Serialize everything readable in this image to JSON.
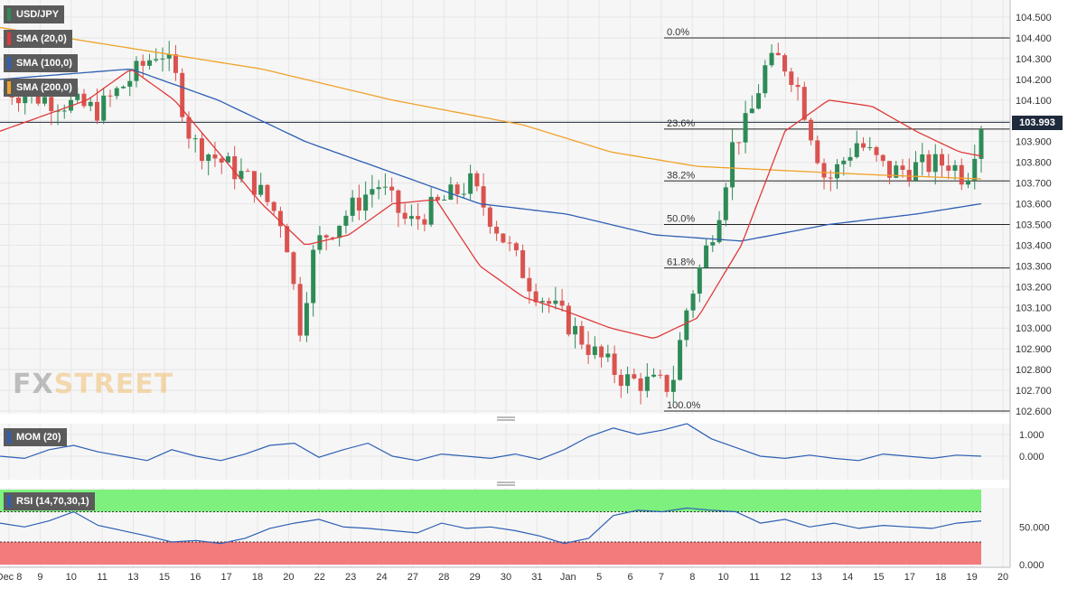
{
  "instrument": "USD/JPY",
  "indicators": {
    "sma20": {
      "label": "SMA (20,0)",
      "color": "#e03a3a"
    },
    "sma100": {
      "label": "SMA (100,0)",
      "color": "#2e5fb3"
    },
    "sma200": {
      "label": "SMA (200,0)",
      "color": "#f0a22a"
    }
  },
  "watermark": {
    "fx": "FX",
    "street": "STREET"
  },
  "last_price": "103.993",
  "chart_data": [
    {
      "type": "candlestick",
      "title": "USD/JPY",
      "ylim": [
        102.6,
        104.55
      ],
      "y_ticks": [
        "104.500",
        "104.400",
        "104.300",
        "104.200",
        "104.100",
        "104.000",
        "103.900",
        "103.800",
        "103.700",
        "103.600",
        "103.500",
        "103.400",
        "103.300",
        "103.200",
        "103.100",
        "103.000",
        "102.900",
        "102.800",
        "102.700",
        "102.600"
      ],
      "x_ticks": [
        "Dec 8",
        "9",
        "10",
        "11",
        "13",
        "15",
        "16",
        "17",
        "18",
        "20",
        "22",
        "23",
        "24",
        "27",
        "28",
        "29",
        "30",
        "31",
        "Jan",
        "5",
        "6",
        "7",
        "8",
        "10",
        "11",
        "12",
        "13",
        "14",
        "15",
        "17",
        "18",
        "19",
        "20"
      ],
      "fibonacci": [
        {
          "label": "0.0%",
          "value": 104.4
        },
        {
          "label": "23.6%",
          "value": 103.96
        },
        {
          "label": "38.2%",
          "value": 103.71
        },
        {
          "label": "50.0%",
          "value": 103.5
        },
        {
          "label": "61.8%",
          "value": 103.29
        },
        {
          "label": "100.0%",
          "value": 102.6
        }
      ],
      "current_price": 103.993,
      "close_path": [
        [
          0,
          104.15
        ],
        [
          6,
          104.05
        ],
        [
          10,
          104.35
        ],
        [
          11,
          104.2
        ],
        [
          12,
          103.9
        ],
        [
          16,
          103.7
        ],
        [
          18,
          103.5
        ],
        [
          19,
          103.0
        ],
        [
          20,
          103.4
        ],
        [
          24,
          103.7
        ],
        [
          26,
          103.5
        ],
        [
          28,
          103.6
        ],
        [
          30,
          103.7
        ],
        [
          32,
          103.45
        ],
        [
          34,
          103.2
        ],
        [
          36,
          103.05
        ],
        [
          38,
          102.88
        ],
        [
          40,
          102.75
        ],
        [
          43,
          102.72
        ],
        [
          44,
          103.1
        ],
        [
          46,
          103.55
        ],
        [
          47,
          103.9
        ],
        [
          48,
          104.0
        ],
        [
          49,
          104.25
        ],
        [
          50,
          104.3
        ],
        [
          51,
          104.2
        ],
        [
          52,
          103.95
        ],
        [
          53,
          103.7
        ],
        [
          55,
          103.9
        ],
        [
          57,
          103.75
        ],
        [
          59,
          103.78
        ],
        [
          61,
          103.8
        ],
        [
          62,
          103.72
        ],
        [
          63,
          103.99
        ]
      ],
      "sma20_path": [
        [
          0,
          103.95
        ],
        [
          4,
          104.1
        ],
        [
          6,
          104.25
        ],
        [
          8,
          104.1
        ],
        [
          10,
          103.85
        ],
        [
          12,
          103.6
        ],
        [
          14,
          103.4
        ],
        [
          16,
          103.45
        ],
        [
          18,
          103.6
        ],
        [
          20,
          103.62
        ],
        [
          22,
          103.3
        ],
        [
          24,
          103.15
        ],
        [
          26,
          103.08
        ],
        [
          28,
          103.0
        ],
        [
          30,
          102.95
        ],
        [
          32,
          103.05
        ],
        [
          34,
          103.4
        ],
        [
          36,
          103.95
        ],
        [
          38,
          104.1
        ],
        [
          40,
          104.07
        ],
        [
          42,
          103.95
        ],
        [
          44,
          103.85
        ],
        [
          45,
          103.83
        ]
      ],
      "sma100_path": [
        [
          0,
          104.2
        ],
        [
          6,
          104.25
        ],
        [
          10,
          104.1
        ],
        [
          14,
          103.9
        ],
        [
          18,
          103.75
        ],
        [
          22,
          103.6
        ],
        [
          26,
          103.55
        ],
        [
          30,
          103.45
        ],
        [
          34,
          103.42
        ],
        [
          38,
          103.5
        ],
        [
          42,
          103.55
        ],
        [
          45,
          103.6
        ]
      ],
      "sma200_path": [
        [
          0,
          104.45
        ],
        [
          6,
          104.35
        ],
        [
          12,
          104.25
        ],
        [
          18,
          104.1
        ],
        [
          24,
          103.98
        ],
        [
          28,
          103.85
        ],
        [
          32,
          103.78
        ],
        [
          36,
          103.76
        ],
        [
          40,
          103.74
        ],
        [
          45,
          103.72
        ]
      ]
    },
    {
      "type": "line",
      "title": "MOM (20)",
      "ylim": [
        -0.35,
        1.5
      ],
      "y_ticks": [
        "1.000",
        "0.000"
      ],
      "series": [
        {
          "name": "MOM (20)",
          "values": [
            0.0,
            -0.1,
            0.3,
            0.5,
            0.2,
            0.0,
            -0.2,
            0.3,
            0.0,
            -0.2,
            0.1,
            0.5,
            0.6,
            -0.05,
            0.3,
            0.6,
            0.0,
            -0.2,
            0.1,
            0.0,
            -0.1,
            0.1,
            -0.15,
            0.3,
            0.9,
            1.3,
            1.0,
            1.2,
            1.5,
            0.8,
            0.4,
            0.0,
            -0.1,
            0.05,
            -0.1,
            -0.2,
            0.1,
            0.0,
            -0.1,
            0.05,
            0.0
          ]
        }
      ]
    },
    {
      "type": "line",
      "title": "RSI (14,70,30,1)",
      "ylim": [
        0,
        100
      ],
      "y_ticks": [
        "50.000",
        "0.000"
      ],
      "bands": [
        70,
        30
      ],
      "series": [
        {
          "name": "RSI (14,70,30,1)",
          "values": [
            55,
            50,
            58,
            70,
            52,
            45,
            38,
            30,
            32,
            28,
            35,
            48,
            55,
            60,
            50,
            48,
            45,
            42,
            55,
            48,
            50,
            45,
            38,
            28,
            35,
            65,
            72,
            70,
            75,
            72,
            70,
            55,
            60,
            50,
            55,
            48,
            52,
            50,
            48,
            55,
            58
          ]
        }
      ]
    }
  ]
}
